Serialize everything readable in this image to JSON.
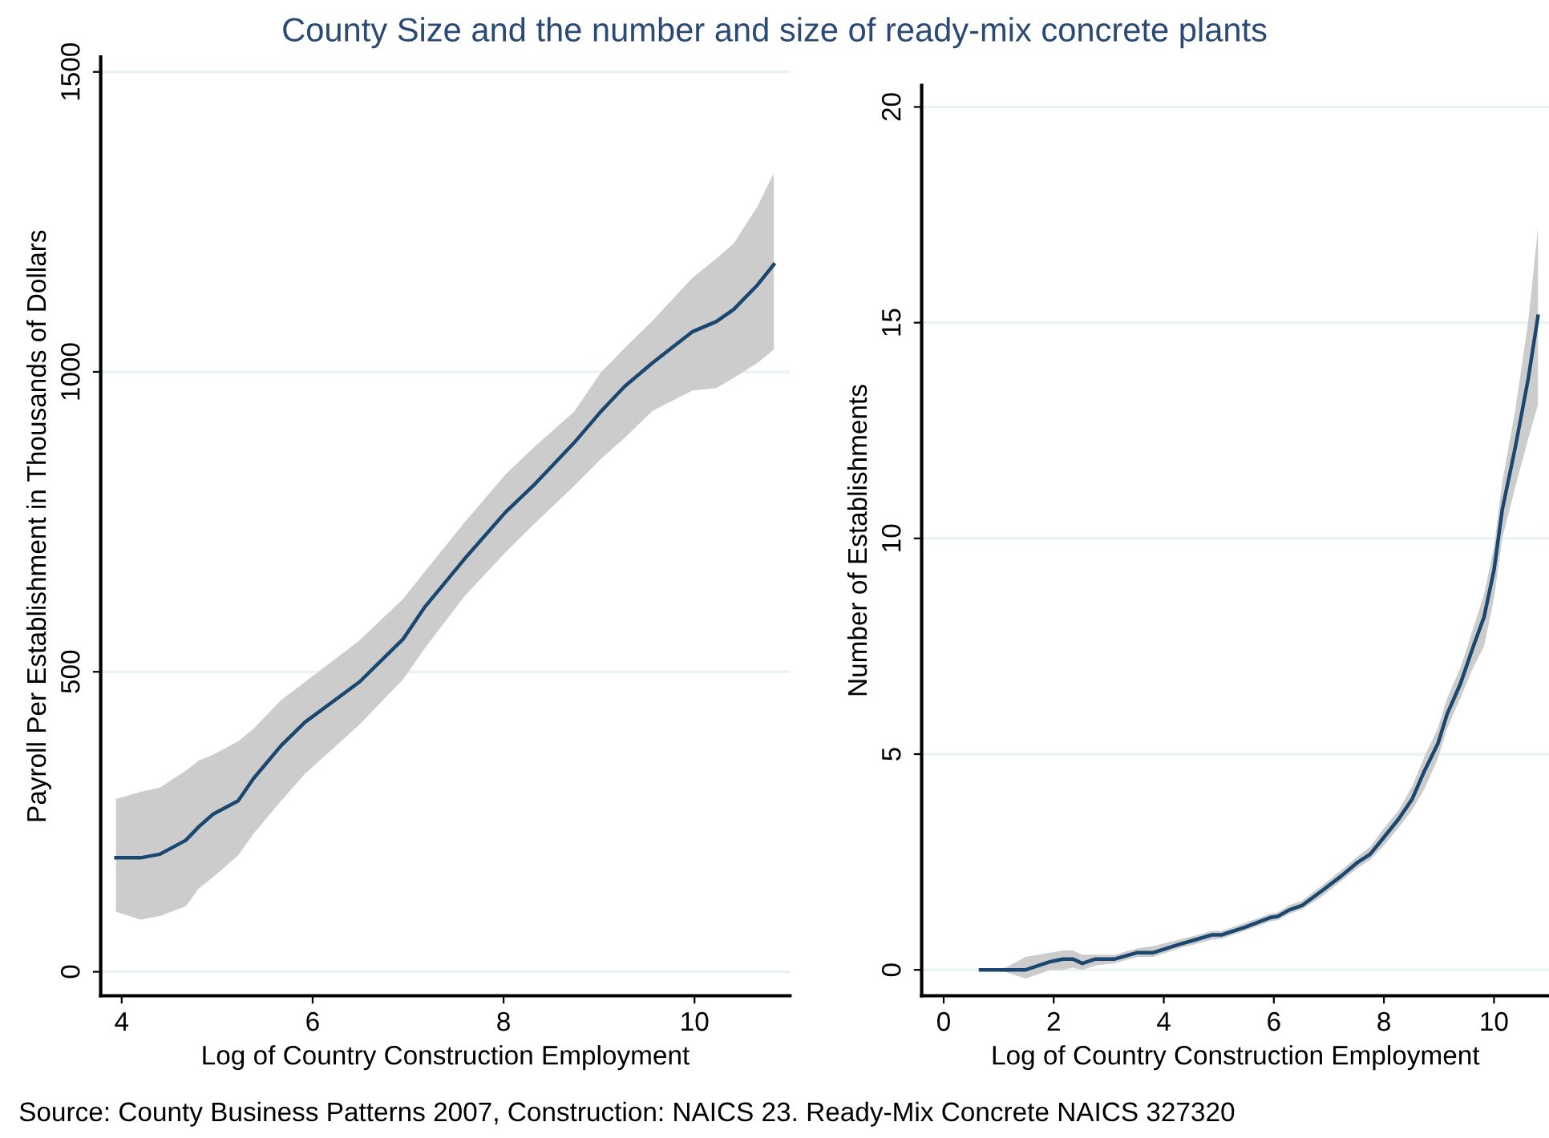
{
  "chart_data": [
    {
      "type": "line",
      "title": "County Size and the number and size of ready-mix concrete plants",
      "xlabel": "Log of Country Construction Employment",
      "ylabel": "Payroll Per Establishment in Thousands of Dollars",
      "annotations": [
        "Source: County Business Patterns 2007, Construction: NAICS 23. Ready-Mix Concrete NAICS 327320"
      ],
      "xlim": [
        3.78,
        11
      ],
      "ylim": [
        -40,
        1525
      ],
      "xticks": [
        4,
        6,
        8,
        10
      ],
      "yticks": [
        0,
        500,
        1000,
        1500
      ],
      "grid": "y",
      "series": [
        {
          "color": "#1a476f",
          "x": [
            3.94,
            4.2,
            4.4,
            4.67,
            4.81,
            4.96,
            5.22,
            5.38,
            5.67,
            5.92,
            6.49,
            6.95,
            7.17,
            7.59,
            8.02,
            8.31,
            8.74,
            9.02,
            9.27,
            9.56,
            9.98,
            10.23,
            10.41,
            10.66,
            10.83
          ],
          "values": [
            190,
            190,
            196,
            219,
            242,
            263,
            285,
            322,
            377,
            416,
            483,
            555,
            607,
            688,
            766,
            810,
            882,
            934,
            976,
            1015,
            1067,
            1084,
            1104,
            1145,
            1179
          ],
          "lower": [
            100,
            87,
            93,
            109,
            139,
            158,
            194,
            230,
            285,
            330,
            412,
            488,
            538,
            626,
            699,
            745,
            810,
            855,
            890,
            935,
            969,
            973,
            990,
            1015,
            1037
          ],
          "upper": [
            288,
            300,
            307,
            335,
            352,
            362,
            384,
            405,
            453,
            483,
            552,
            622,
            666,
            749,
            829,
            873,
            934,
            999,
            1040,
            1085,
            1157,
            1189,
            1214,
            1276,
            1331
          ]
        }
      ]
    },
    {
      "type": "line",
      "xlabel": "Log of Country Construction Employment",
      "ylabel": "Number of Establishments",
      "xlim": [
        -0.4,
        11
      ],
      "ylim": [
        -0.6,
        20.5
      ],
      "xticks": [
        0,
        2,
        4,
        6,
        8,
        10
      ],
      "yticks": [
        0,
        5,
        10,
        15,
        20
      ],
      "grid": "y",
      "series": [
        {
          "color": "#1a476f",
          "x": [
            0.67,
            1.12,
            1.49,
            1.94,
            2.17,
            2.35,
            2.52,
            2.76,
            3.11,
            3.52,
            3.81,
            4.28,
            4.58,
            4.87,
            5.05,
            5.46,
            5.93,
            6.07,
            6.28,
            6.51,
            6.87,
            7.22,
            7.51,
            7.75,
            7.98,
            8.27,
            8.51,
            8.74,
            8.98,
            9.15,
            9.39,
            9.62,
            9.82,
            10.0,
            10.15,
            10.39,
            10.62,
            10.8
          ],
          "values": [
            0,
            0,
            0,
            0.19,
            0.25,
            0.25,
            0.15,
            0.25,
            0.25,
            0.4,
            0.4,
            0.59,
            0.7,
            0.81,
            0.81,
            0.98,
            1.21,
            1.24,
            1.39,
            1.49,
            1.83,
            2.17,
            2.48,
            2.68,
            3.04,
            3.5,
            3.95,
            4.62,
            5.24,
            5.93,
            6.63,
            7.48,
            8.18,
            9.26,
            10.66,
            12.13,
            13.68,
            15.15
          ],
          "lower": [
            0,
            -0.05,
            -0.2,
            0,
            0,
            0.05,
            0,
            0.1,
            0.15,
            0.3,
            0.3,
            0.5,
            0.6,
            0.7,
            0.72,
            0.9,
            1.12,
            1.15,
            1.3,
            1.4,
            1.7,
            2.05,
            2.35,
            2.55,
            2.85,
            3.3,
            3.7,
            4.2,
            4.9,
            5.6,
            6.3,
            7.0,
            7.5,
            8.6,
            10.0,
            11.2,
            12.3,
            13.1
          ],
          "upper": [
            0,
            0.05,
            0.3,
            0.4,
            0.45,
            0.45,
            0.35,
            0.35,
            0.35,
            0.5,
            0.55,
            0.7,
            0.8,
            0.9,
            0.9,
            1.08,
            1.3,
            1.33,
            1.5,
            1.6,
            1.95,
            2.3,
            2.62,
            2.85,
            3.25,
            3.7,
            4.25,
            4.95,
            5.6,
            6.3,
            7.0,
            7.9,
            8.7,
            9.8,
            11.3,
            13.0,
            15.0,
            17.2
          ]
        }
      ]
    }
  ]
}
